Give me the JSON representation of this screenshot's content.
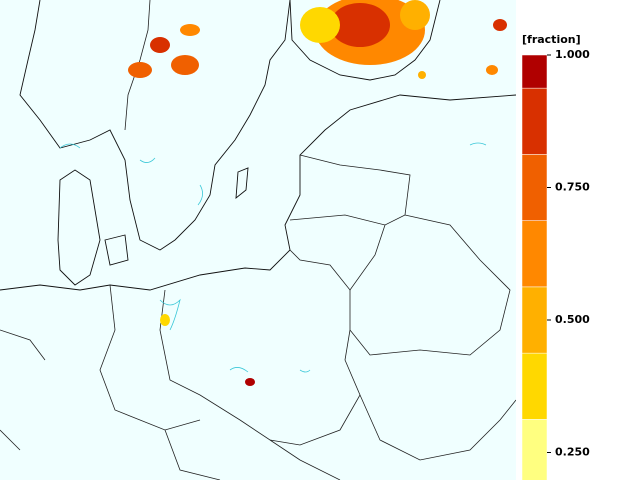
{
  "colorbar": {
    "label": "[fraction]",
    "levels": [
      0.1875,
      0.3125,
      0.4375,
      0.5625,
      0.6875,
      0.8125,
      0.9375,
      1.0
    ],
    "colors": [
      "#ffff80",
      "#ffd800",
      "#ffb000",
      "#ff8800",
      "#f06000",
      "#d83000",
      "#b00000"
    ],
    "ticks": [
      {
        "value": 1.0,
        "label": "1.000"
      },
      {
        "value": 0.75,
        "label": "0.750"
      },
      {
        "value": 0.5,
        "label": "0.500"
      },
      {
        "value": 0.25,
        "label": "0.250"
      }
    ]
  }
}
